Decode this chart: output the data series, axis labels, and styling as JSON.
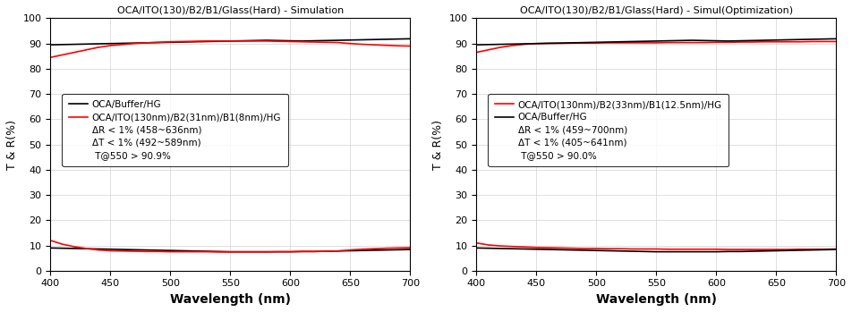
{
  "left": {
    "title": "OCA/ITO(130)/B2/B1/Glass(Hard) - Simulation",
    "xlabel": "Wavelength (nm)",
    "ylabel": "T & R(%)",
    "xlim": [
      400,
      700
    ],
    "ylim": [
      0,
      100
    ],
    "yticks": [
      0,
      10,
      20,
      30,
      40,
      50,
      60,
      70,
      80,
      90,
      100
    ],
    "xticks": [
      400,
      450,
      500,
      550,
      600,
      650,
      700
    ],
    "legend_line1": "OCA/Buffer/HG",
    "legend_line2": "OCA/ITO(130nm)/B2(31nm)/B1(8nm)/HG",
    "ann_line1": "ΔR < 1% (458~636nm)",
    "ann_line2": "ΔT < 1% (492~589nm)",
    "ann_line3": " T@550 > 90.9%",
    "legend_order_red_first": false,
    "black_T": {
      "wl": [
        400,
        410,
        420,
        430,
        440,
        450,
        460,
        470,
        480,
        490,
        500,
        510,
        520,
        530,
        540,
        550,
        560,
        570,
        580,
        590,
        600,
        610,
        620,
        630,
        640,
        650,
        660,
        670,
        680,
        690,
        700
      ],
      "val": [
        89.5,
        89.6,
        89.7,
        89.8,
        89.9,
        90.0,
        90.1,
        90.2,
        90.3,
        90.4,
        90.5,
        90.6,
        90.7,
        90.8,
        90.9,
        91.0,
        91.1,
        91.2,
        91.3,
        91.2,
        91.1,
        91.0,
        91.1,
        91.2,
        91.3,
        91.4,
        91.5,
        91.6,
        91.7,
        91.8,
        91.9
      ]
    },
    "red_T": {
      "wl": [
        400,
        410,
        420,
        430,
        440,
        450,
        460,
        470,
        480,
        490,
        500,
        510,
        520,
        530,
        540,
        550,
        560,
        570,
        580,
        590,
        600,
        610,
        620,
        630,
        640,
        650,
        660,
        670,
        680,
        690,
        700
      ],
      "val": [
        84.5,
        85.5,
        86.5,
        87.5,
        88.5,
        89.2,
        89.6,
        90.0,
        90.3,
        90.5,
        90.7,
        90.8,
        90.9,
        91.0,
        91.0,
        91.0,
        91.0,
        91.0,
        91.0,
        90.9,
        90.8,
        90.7,
        90.6,
        90.5,
        90.4,
        90.0,
        89.7,
        89.5,
        89.3,
        89.1,
        89.0
      ]
    },
    "black_R": {
      "wl": [
        400,
        410,
        420,
        430,
        440,
        450,
        460,
        470,
        480,
        490,
        500,
        510,
        520,
        530,
        540,
        550,
        560,
        570,
        580,
        590,
        600,
        610,
        620,
        630,
        640,
        650,
        660,
        670,
        680,
        690,
        700
      ],
      "val": [
        9.0,
        8.9,
        8.8,
        8.7,
        8.6,
        8.5,
        8.4,
        8.3,
        8.2,
        8.1,
        8.0,
        7.9,
        7.8,
        7.7,
        7.6,
        7.5,
        7.5,
        7.5,
        7.5,
        7.5,
        7.5,
        7.6,
        7.6,
        7.7,
        7.8,
        7.9,
        8.0,
        8.1,
        8.2,
        8.3,
        8.4
      ]
    },
    "red_R": {
      "wl": [
        400,
        410,
        420,
        430,
        440,
        450,
        460,
        470,
        480,
        490,
        500,
        510,
        520,
        530,
        540,
        550,
        560,
        570,
        580,
        590,
        600,
        610,
        620,
        630,
        640,
        650,
        660,
        670,
        680,
        690,
        700
      ],
      "val": [
        12.0,
        10.5,
        9.5,
        8.8,
        8.2,
        7.9,
        7.8,
        7.7,
        7.6,
        7.6,
        7.5,
        7.5,
        7.5,
        7.5,
        7.4,
        7.4,
        7.4,
        7.4,
        7.4,
        7.5,
        7.5,
        7.6,
        7.6,
        7.7,
        7.8,
        8.2,
        8.5,
        8.7,
        8.9,
        9.0,
        9.1
      ]
    }
  },
  "right": {
    "title": "OCA/ITO(130)/B2/B1/Glass(Hard) - Simul(Optimization)",
    "xlabel": "Wavelength (nm)",
    "ylabel": "T & R(%)",
    "xlim": [
      400,
      700
    ],
    "ylim": [
      0,
      100
    ],
    "yticks": [
      0,
      10,
      20,
      30,
      40,
      50,
      60,
      70,
      80,
      90,
      100
    ],
    "xticks": [
      400,
      450,
      500,
      550,
      600,
      650,
      700
    ],
    "legend_line1": "OCA/ITO(130nm)/B2(33nm)/B1(12.5nm)/HG",
    "legend_line2": "OCA/Buffer/HG",
    "ann_line1": "ΔR < 1% (459~700nm)",
    "ann_line2": "ΔT < 1% (405~641nm)",
    "ann_line3": " T@550 > 90.0%",
    "legend_order_red_first": true,
    "red_T": {
      "wl": [
        400,
        410,
        420,
        430,
        440,
        450,
        460,
        470,
        480,
        490,
        500,
        510,
        520,
        530,
        540,
        550,
        560,
        570,
        580,
        590,
        600,
        610,
        620,
        630,
        640,
        650,
        660,
        670,
        680,
        690,
        700
      ],
      "val": [
        86.5,
        87.5,
        88.5,
        89.2,
        89.7,
        90.0,
        90.1,
        90.1,
        90.2,
        90.2,
        90.2,
        90.3,
        90.3,
        90.3,
        90.3,
        90.3,
        90.4,
        90.4,
        90.4,
        90.4,
        90.5,
        90.5,
        90.6,
        90.6,
        90.7,
        90.7,
        90.7,
        90.7,
        90.8,
        90.8,
        90.8
      ]
    },
    "black_T": {
      "wl": [
        400,
        410,
        420,
        430,
        440,
        450,
        460,
        470,
        480,
        490,
        500,
        510,
        520,
        530,
        540,
        550,
        560,
        570,
        580,
        590,
        600,
        610,
        620,
        630,
        640,
        650,
        660,
        670,
        680,
        690,
        700
      ],
      "val": [
        89.5,
        89.6,
        89.7,
        89.8,
        89.9,
        90.0,
        90.1,
        90.2,
        90.3,
        90.4,
        90.5,
        90.6,
        90.7,
        90.8,
        90.9,
        91.0,
        91.1,
        91.2,
        91.3,
        91.2,
        91.1,
        91.0,
        91.1,
        91.2,
        91.3,
        91.4,
        91.5,
        91.6,
        91.7,
        91.8,
        91.9
      ]
    },
    "red_R": {
      "wl": [
        400,
        410,
        420,
        430,
        440,
        450,
        460,
        470,
        480,
        490,
        500,
        510,
        520,
        530,
        540,
        550,
        560,
        570,
        580,
        590,
        600,
        610,
        620,
        630,
        640,
        650,
        660,
        670,
        680,
        690,
        700
      ],
      "val": [
        11.0,
        10.2,
        9.8,
        9.6,
        9.4,
        9.2,
        9.1,
        9.0,
        8.9,
        8.8,
        8.8,
        8.7,
        8.7,
        8.6,
        8.6,
        8.6,
        8.5,
        8.5,
        8.5,
        8.5,
        8.5,
        8.4,
        8.4,
        8.4,
        8.4,
        8.4,
        8.4,
        8.5,
        8.5,
        8.5,
        8.6
      ]
    },
    "black_R": {
      "wl": [
        400,
        410,
        420,
        430,
        440,
        450,
        460,
        470,
        480,
        490,
        500,
        510,
        520,
        530,
        540,
        550,
        560,
        570,
        580,
        590,
        600,
        610,
        620,
        630,
        640,
        650,
        660,
        670,
        680,
        690,
        700
      ],
      "val": [
        9.0,
        8.9,
        8.8,
        8.7,
        8.6,
        8.5,
        8.4,
        8.3,
        8.2,
        8.1,
        8.0,
        7.9,
        7.8,
        7.7,
        7.6,
        7.5,
        7.5,
        7.5,
        7.5,
        7.5,
        7.5,
        7.6,
        7.6,
        7.7,
        7.8,
        7.9,
        8.0,
        8.1,
        8.2,
        8.3,
        8.4
      ]
    }
  }
}
